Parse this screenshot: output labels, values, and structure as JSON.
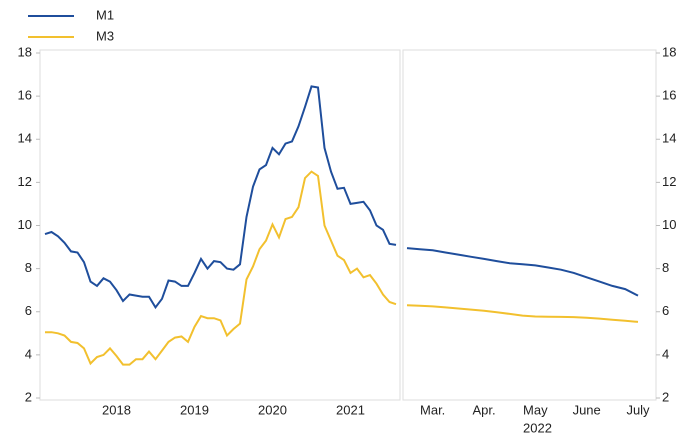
{
  "chart_data": [
    {
      "type": "line",
      "categories": [
        null,
        null,
        null,
        null,
        null,
        null,
        null,
        null,
        null,
        null,
        null,
        "2018",
        null,
        null,
        null,
        null,
        null,
        null,
        null,
        null,
        null,
        null,
        null,
        "2019",
        null,
        null,
        null,
        null,
        null,
        null,
        null,
        null,
        null,
        null,
        null,
        "2020",
        null,
        null,
        null,
        null,
        null,
        null,
        null,
        null,
        null,
        null,
        null,
        "2021",
        null,
        null,
        null,
        null,
        null,
        null,
        null
      ],
      "series": [
        {
          "name": "M1",
          "color": "#1f4e9c",
          "values": [
            9.6,
            9.7,
            9.5,
            9.2,
            8.8,
            8.75,
            8.3,
            7.4,
            7.2,
            7.55,
            7.4,
            7.0,
            6.5,
            6.8,
            6.75,
            6.7,
            6.7,
            6.2,
            6.6,
            7.45,
            7.4,
            7.2,
            7.2,
            7.8,
            8.45,
            8.0,
            8.35,
            8.3,
            8.0,
            7.95,
            8.2,
            10.4,
            11.8,
            12.6,
            12.8,
            13.6,
            13.3,
            13.8,
            13.9,
            14.6,
            15.5,
            16.45,
            16.4,
            13.6,
            12.5,
            11.7,
            11.75,
            11.0,
            11.05,
            11.1,
            10.7,
            10.0,
            9.8,
            9.15,
            9.1
          ]
        },
        {
          "name": "M3",
          "color": "#f2c02e",
          "values": [
            5.05,
            5.05,
            5.0,
            4.9,
            4.6,
            4.55,
            4.3,
            3.6,
            3.9,
            4.0,
            4.3,
            3.95,
            3.55,
            3.55,
            3.8,
            3.8,
            4.15,
            3.8,
            4.2,
            4.6,
            4.8,
            4.85,
            4.6,
            5.3,
            5.8,
            5.7,
            5.7,
            5.6,
            4.9,
            5.2,
            5.45,
            7.5,
            8.1,
            8.9,
            9.3,
            10.05,
            9.45,
            10.3,
            10.4,
            10.85,
            12.2,
            12.5,
            12.3,
            10.0,
            9.3,
            8.6,
            8.4,
            7.8,
            8.0,
            7.6,
            7.7,
            7.3,
            6.8,
            6.45,
            6.35
          ]
        }
      ],
      "ylim": [
        2,
        18
      ],
      "yticks": [
        2,
        4,
        6,
        8,
        10,
        12,
        14,
        16,
        18
      ]
    },
    {
      "type": "line",
      "categories": [
        null,
        null,
        "Mar.",
        null,
        null,
        null,
        "Apr.",
        null,
        null,
        null,
        "May",
        null,
        null,
        null,
        "June",
        null,
        null,
        null,
        "July"
      ],
      "x_label": "2022",
      "series": [
        {
          "color": "#1f4e9c",
          "values": [
            8.95,
            8.9,
            8.85,
            8.75,
            8.65,
            8.55,
            8.45,
            8.35,
            8.25,
            8.2,
            8.15,
            8.05,
            7.95,
            7.8,
            7.6,
            7.4,
            7.2,
            7.05,
            6.75
          ]
        },
        {
          "color": "#f2c02e",
          "values": [
            6.3,
            6.28,
            6.25,
            6.2,
            6.15,
            6.1,
            6.05,
            5.98,
            5.9,
            5.82,
            5.78,
            5.77,
            5.76,
            5.75,
            5.72,
            5.68,
            5.63,
            5.58,
            5.53
          ]
        }
      ],
      "ylim": [
        2,
        18
      ],
      "yticks": [
        2,
        4,
        6,
        8,
        10,
        12,
        14,
        16,
        18
      ]
    }
  ]
}
